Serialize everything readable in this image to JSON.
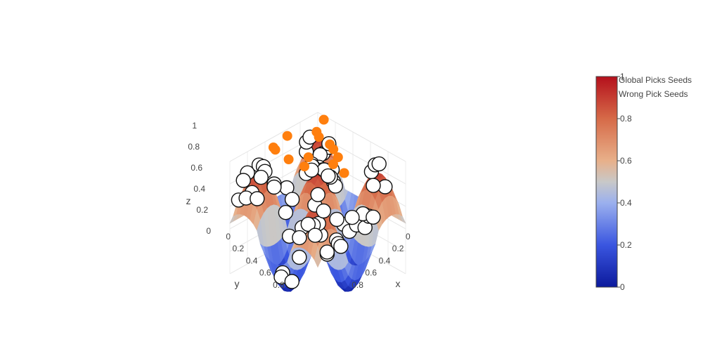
{
  "chart_data": {
    "type": "surface3d",
    "title": "",
    "axes": {
      "x": {
        "label": "x",
        "range": [
          0,
          1
        ],
        "ticks": [
          "0",
          "0.2",
          "0.4",
          "0.6",
          "0.8"
        ]
      },
      "y": {
        "label": "y",
        "range": [
          0,
          1
        ],
        "ticks": [
          "0",
          "0.2",
          "0.4",
          "0.6",
          "0.8"
        ]
      },
      "z": {
        "label": "z",
        "range": [
          0,
          1
        ],
        "ticks": [
          "0",
          "0.2",
          "0.4",
          "0.6",
          "0.8",
          "1"
        ]
      }
    },
    "colorscale": {
      "name": "diverging-blue-red",
      "range": [
        0,
        1
      ],
      "ticks": [
        "0",
        "0.2",
        "0.4",
        "0.6",
        "0.8",
        "1"
      ],
      "stops": [
        "#0c1a9c",
        "#6a8bef",
        "#c8c8c8",
        "#f39a5c",
        "#b4101c"
      ]
    },
    "series": [
      {
        "name": "Global Picks Seeds",
        "marker": "orange-filled-circle",
        "color": "#ff7f0e"
      },
      {
        "name": "Wrong Pick Seeds",
        "marker": "white-circle",
        "color": "#ffffff"
      }
    ],
    "legend": {
      "position": "top-right"
    }
  }
}
